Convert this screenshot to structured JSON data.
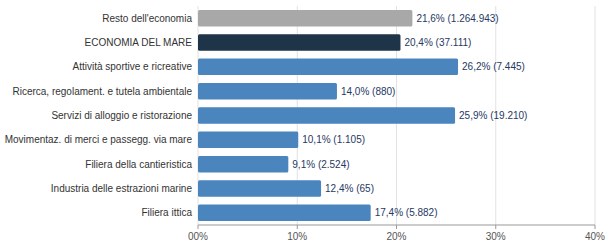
{
  "chart_data": {
    "type": "bar",
    "orientation": "horizontal",
    "categories": [
      "Resto dell'economia",
      "ECONOMIA DEL MARE",
      "Attività sportive e ricreative",
      "Ricerca, regolament. e tutela ambientale",
      "Servizi di alloggio e ristorazione",
      "Movimentaz. di merci e passegg. via mare",
      "Filiera della cantieristica",
      "Industria delle estrazioni marine",
      "Filiera ittica"
    ],
    "values": [
      0.216,
      0.204,
      0.262,
      0.14,
      0.259,
      0.101,
      0.091,
      0.124,
      0.174
    ],
    "value_labels": [
      "21,6% (1.264.943)",
      "20,4% (37.111)",
      "26,2% (7.445)",
      "14,0% (880)",
      "25,9% (19.210)",
      "10,1% (1.105)",
      "9,1% (2.524)",
      "12,4% (65)",
      "17,4% (5.882)"
    ],
    "data_labels": true,
    "colors": [
      "#a8a8a8",
      "#1e3448",
      "#4a85be",
      "#4a85be",
      "#4a85be",
      "#4a85be",
      "#4a85be",
      "#4a85be",
      "#4a85be"
    ],
    "xlim": [
      0,
      0.4
    ],
    "xticks": [
      {
        "value": 0.0,
        "label": "00%"
      },
      {
        "value": 0.1,
        "label": "10%"
      },
      {
        "value": 0.2,
        "label": "20%"
      },
      {
        "value": 0.3,
        "label": "30%"
      },
      {
        "value": 0.4,
        "label": "40%"
      }
    ],
    "grid": true
  }
}
